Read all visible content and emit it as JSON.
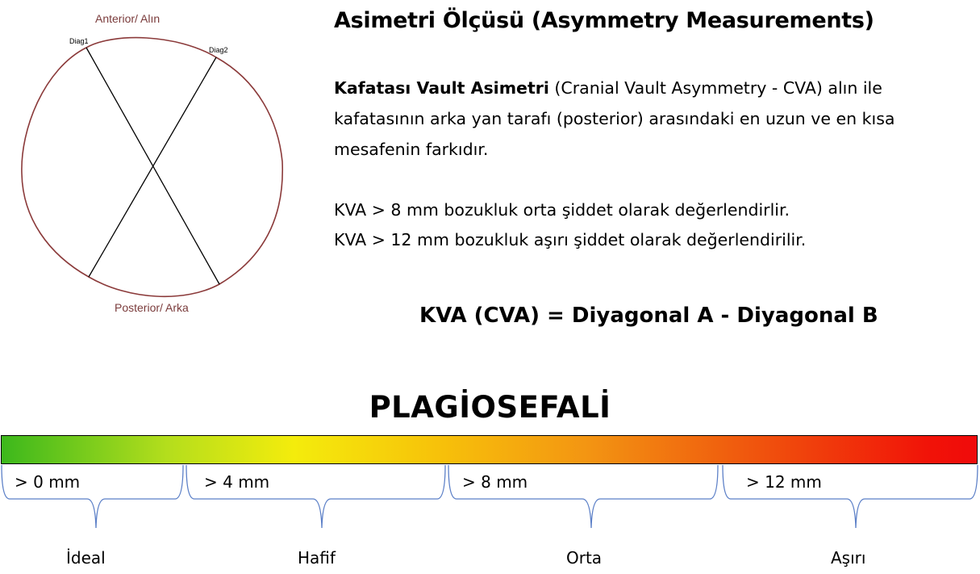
{
  "skull": {
    "anterior_label": "Anterior/ Alın",
    "posterior_label": "Posterior/ Arka",
    "diag1_label": "Diag1",
    "diag2_label": "Diag2",
    "outline_color": "#8b3a3a"
  },
  "title": "Asimetri Ölçüsü (Asymmetry Measurements)",
  "description": {
    "bold_term": "Kafatası Vault Asimetri",
    "text": " (Cranial Vault Asymmetry - CVA) alın ile kafatasının arka yan tarafı (posterior) arasındaki en uzun ve en kısa mesafenin farkıdır."
  },
  "rules": [
    "KVA > 8 mm bozukluk orta şiddet olarak değerlendirlir.",
    "KVA > 12 mm bozukluk aşırı şiddet olarak değerlendirilir."
  ],
  "formula": "KVA (CVA) = Diyagonal A - Diyagonal B",
  "scale": {
    "title": "PLAGİOSEFALİ",
    "ranges": [
      "> 0 mm",
      "> 4 mm",
      "> 8 mm",
      "> 12 mm"
    ],
    "levels": [
      "İdeal",
      "Hafif",
      "Orta",
      "Aşırı"
    ],
    "colors": [
      "#3cb81c",
      "#f4ec0c",
      "#f39512",
      "#f00a0a"
    ],
    "brace_color": "#5b7fc7"
  }
}
